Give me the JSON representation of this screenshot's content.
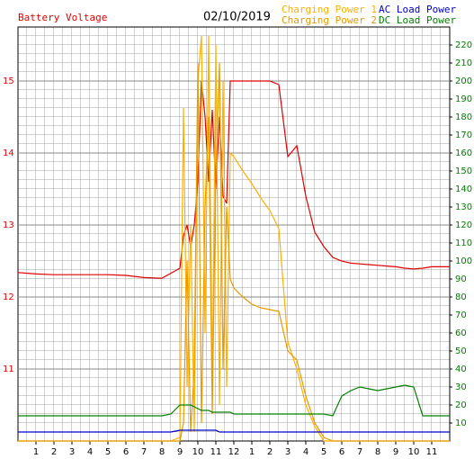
{
  "chart_data": {
    "type": "line",
    "title": "Battery Voltage",
    "subtitle": "02/10/2019",
    "x": [
      0,
      1,
      2,
      3,
      4,
      5,
      6,
      7,
      8,
      8.5,
      9,
      9.2,
      9.4,
      9.6,
      9.8,
      10,
      10.2,
      10.4,
      10.6,
      10.8,
      11,
      11.2,
      11.4,
      11.6,
      11.8,
      12,
      12.5,
      13,
      13.5,
      14,
      14.5,
      15,
      15.5,
      16,
      16.5,
      17,
      17.5,
      18,
      18.5,
      19,
      19.5,
      20,
      20.5,
      21,
      21.5,
      22,
      22.5,
      23,
      24
    ],
    "series": [
      {
        "name": "Battery Voltage",
        "color": "#e00000",
        "axis": "y",
        "values": [
          12.34,
          12.32,
          12.31,
          12.31,
          12.31,
          12.31,
          12.3,
          12.27,
          12.26,
          12.33,
          12.4,
          12.85,
          13.0,
          12.7,
          13.0,
          13.6,
          15.0,
          14.5,
          13.6,
          14.6,
          13.5,
          14.5,
          13.4,
          13.3,
          15.0,
          15.0,
          15.0,
          15.0,
          15.0,
          15.0,
          14.95,
          13.95,
          14.1,
          13.4,
          12.9,
          12.7,
          12.55,
          12.5,
          12.47,
          12.46,
          12.45,
          12.44,
          12.43,
          12.42,
          12.4,
          12.39,
          12.4,
          12.42,
          12.42
        ]
      },
      {
        "name": "Charging Power 1",
        "color": "#ffb000",
        "axis": "y2",
        "values": [
          0,
          0,
          0,
          0,
          0,
          0,
          0,
          0,
          0,
          0,
          2,
          185,
          30,
          120,
          5,
          200,
          225,
          60,
          225,
          30,
          220,
          20,
          200,
          30,
          160,
          158,
          150,
          143,
          135,
          128,
          118,
          55,
          40,
          20,
          8,
          0,
          0,
          0,
          0,
          0,
          0,
          0,
          0,
          0,
          0,
          0,
          0,
          0,
          0
        ]
      },
      {
        "name": "Charging Power 2",
        "color": "#e89a00",
        "axis": "y2",
        "values": [
          0,
          0,
          0,
          0,
          0,
          0,
          0,
          0,
          0,
          0,
          0,
          10,
          100,
          5,
          40,
          210,
          10,
          130,
          180,
          15,
          150,
          210,
          40,
          130,
          90,
          85,
          80,
          76,
          74,
          73,
          72,
          50,
          45,
          25,
          10,
          2,
          0,
          0,
          0,
          0,
          0,
          0,
          0,
          0,
          0,
          0,
          0,
          0,
          0
        ]
      },
      {
        "name": "AC Load Power",
        "color": "#0000d0",
        "axis": "y2",
        "values": [
          5,
          5,
          5,
          5,
          5,
          5,
          5,
          5,
          5,
          5,
          6,
          6,
          6,
          6,
          6,
          6,
          6,
          6,
          6,
          6,
          6,
          5,
          5,
          5,
          5,
          5,
          5,
          5,
          5,
          5,
          5,
          5,
          5,
          5,
          5,
          5,
          5,
          5,
          5,
          5,
          5,
          5,
          5,
          5,
          5,
          5,
          5,
          5,
          5
        ]
      },
      {
        "name": "DC Load Power",
        "color": "#008000",
        "axis": "y2",
        "values": [
          14,
          14,
          14,
          14,
          14,
          14,
          14,
          14,
          14,
          15,
          20,
          20,
          20,
          20,
          19,
          18,
          17,
          17,
          17,
          16,
          16,
          16,
          16,
          16,
          16,
          15,
          15,
          15,
          15,
          15,
          15,
          15,
          15,
          15,
          15,
          15,
          14,
          25,
          28,
          30,
          29,
          28,
          29,
          30,
          31,
          30,
          14,
          14,
          14
        ]
      }
    ],
    "xlim": [
      0,
      24
    ],
    "xticks": [
      1,
      2,
      3,
      4,
      5,
      6,
      7,
      8,
      9,
      10,
      11,
      12,
      {
        "value": 13,
        "label": "1"
      },
      {
        "value": 14,
        "label": "2"
      },
      {
        "value": 15,
        "label": "3"
      },
      {
        "value": 16,
        "label": "4"
      },
      {
        "value": 17,
        "label": "5"
      },
      {
        "value": 18,
        "label": "6"
      },
      {
        "value": 19,
        "label": "7"
      },
      {
        "value": 20,
        "label": "8"
      },
      {
        "value": 21,
        "label": "9"
      },
      {
        "value": 22,
        "label": "10"
      },
      {
        "value": 23,
        "label": "11"
      }
    ],
    "ylim": [
      10,
      15.75
    ],
    "yticks": [
      11,
      12,
      13,
      14,
      15
    ],
    "y2lim": [
      0,
      230
    ],
    "y2ticks": [
      10,
      20,
      30,
      40,
      50,
      60,
      70,
      80,
      90,
      100,
      110,
      120,
      130,
      140,
      150,
      160,
      170,
      180,
      190,
      200,
      210,
      220
    ],
    "grid": true
  }
}
